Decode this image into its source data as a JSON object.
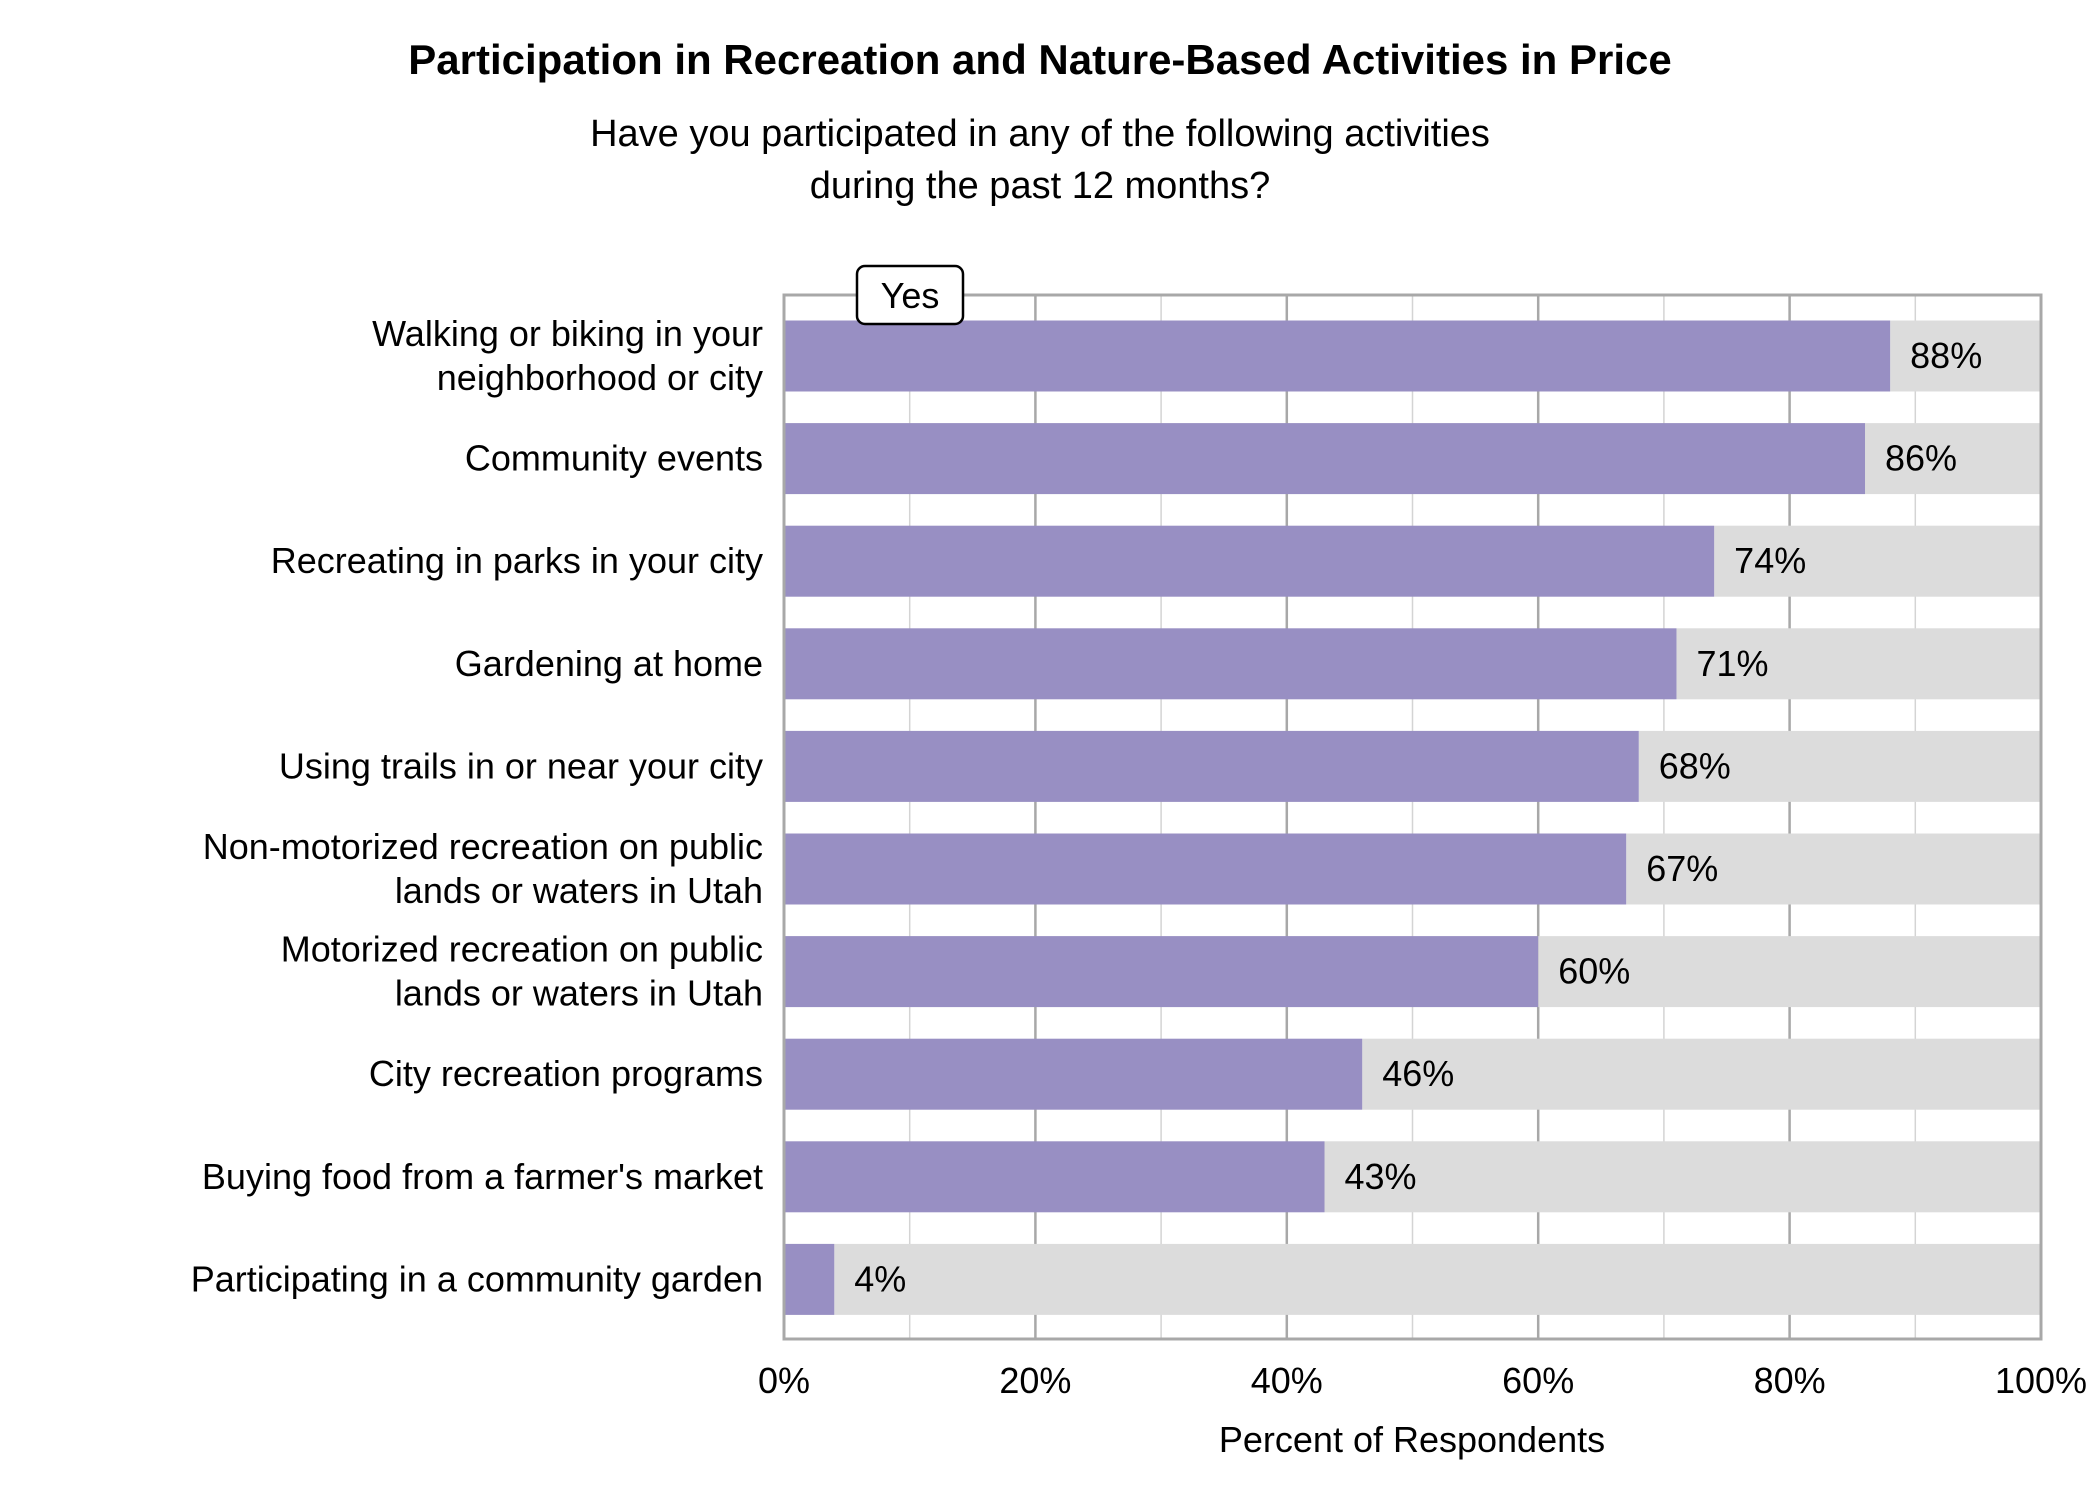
{
  "chart_data": {
    "type": "bar",
    "orientation": "horizontal",
    "stacked_remainder": true,
    "title": "Participation in Recreation and Nature-Based Activities in Price",
    "subtitle": [
      "Have you participated in any of the following activities",
      "during the past 12 months?"
    ],
    "xlabel": "Percent of Respondents",
    "ylabel": "",
    "xlim": [
      0,
      100
    ],
    "x_ticks": [
      "0%",
      "20%",
      "40%",
      "60%",
      "80%",
      "100%"
    ],
    "grid": true,
    "legend": {
      "entries": [
        "Yes"
      ],
      "placement": "top-left"
    },
    "categories": [
      [
        "Walking or biking in your",
        "neighborhood or city"
      ],
      [
        "Community events"
      ],
      [
        "Recreating in parks in your city"
      ],
      [
        "Gardening at home"
      ],
      [
        "Using trails in or near your city"
      ],
      [
        "Non-motorized recreation on public",
        "lands or waters in Utah"
      ],
      [
        "Motorized recreation on public",
        "lands or waters in Utah"
      ],
      [
        "City recreation programs"
      ],
      [
        "Buying food from a farmer's market"
      ],
      [
        "Participating in a community garden"
      ]
    ],
    "series": [
      {
        "name": "Yes",
        "values": [
          88,
          86,
          74,
          71,
          68,
          67,
          60,
          46,
          43,
          4
        ]
      }
    ],
    "data_labels": [
      "88%",
      "86%",
      "74%",
      "71%",
      "68%",
      "67%",
      "60%",
      "46%",
      "43%",
      "4%"
    ],
    "colors": {
      "yes": "#988fc3",
      "remainder": "#dcdcdc",
      "grid_major": "#a8a8a8",
      "grid_minor": "#d4d4d4",
      "frame": "#a8a8a8"
    }
  }
}
